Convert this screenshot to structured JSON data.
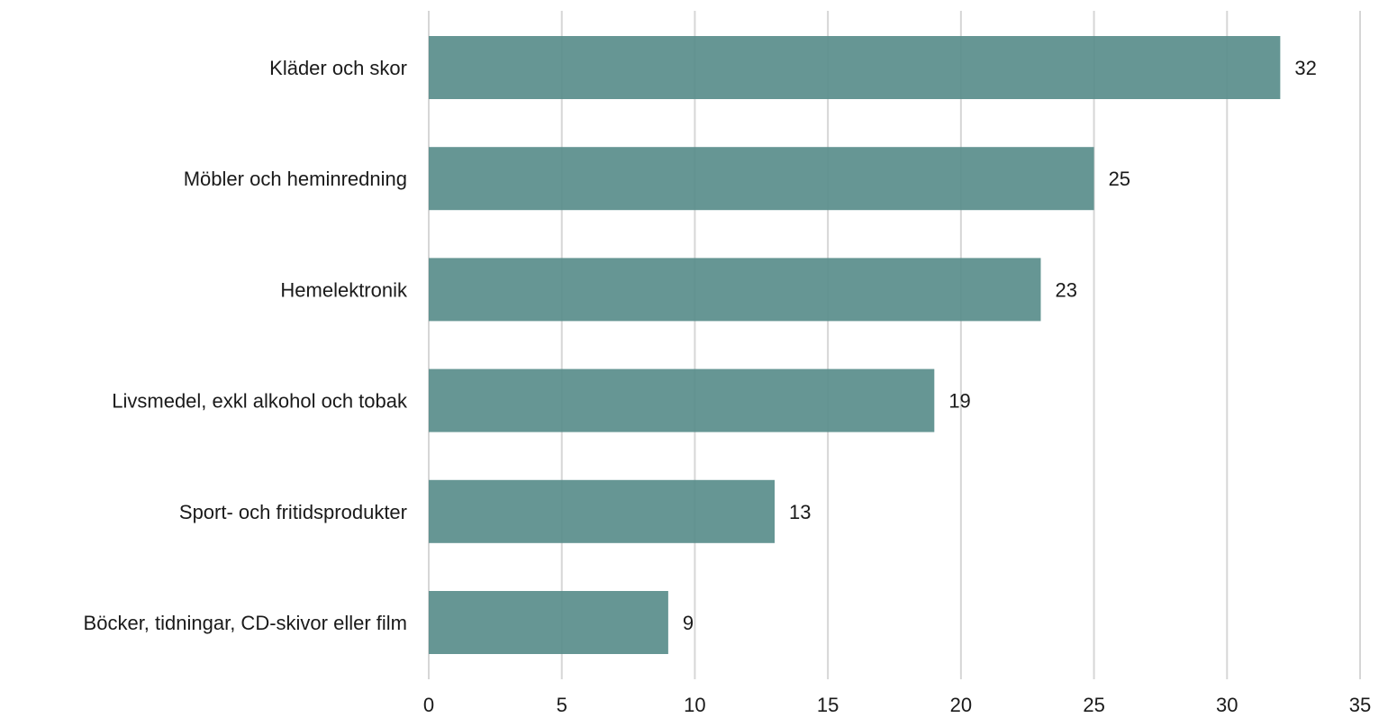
{
  "chart_data": {
    "type": "bar",
    "orientation": "horizontal",
    "categories": [
      "Kläder och skor",
      "Möbler och heminredning",
      "Hemelektronik",
      "Livsmedel, exkl alkohol och tobak",
      "Sport- och fritidsprodukter",
      "Böcker, tidningar, CD-skivor eller film"
    ],
    "values": [
      32,
      25,
      23,
      19,
      13,
      9
    ],
    "value_labels": [
      "32",
      "25",
      "23",
      "19",
      "13",
      "9"
    ],
    "xlim": [
      0,
      35
    ],
    "x_ticks": [
      0,
      5,
      10,
      15,
      20,
      25,
      30,
      35
    ],
    "x_tick_labels": [
      "0",
      "5",
      "10",
      "15",
      "20",
      "25",
      "30",
      "35"
    ],
    "grid": true,
    "legend": "none",
    "bar_color": "#5a8e8c",
    "title": "",
    "xlabel": "",
    "ylabel": ""
  }
}
